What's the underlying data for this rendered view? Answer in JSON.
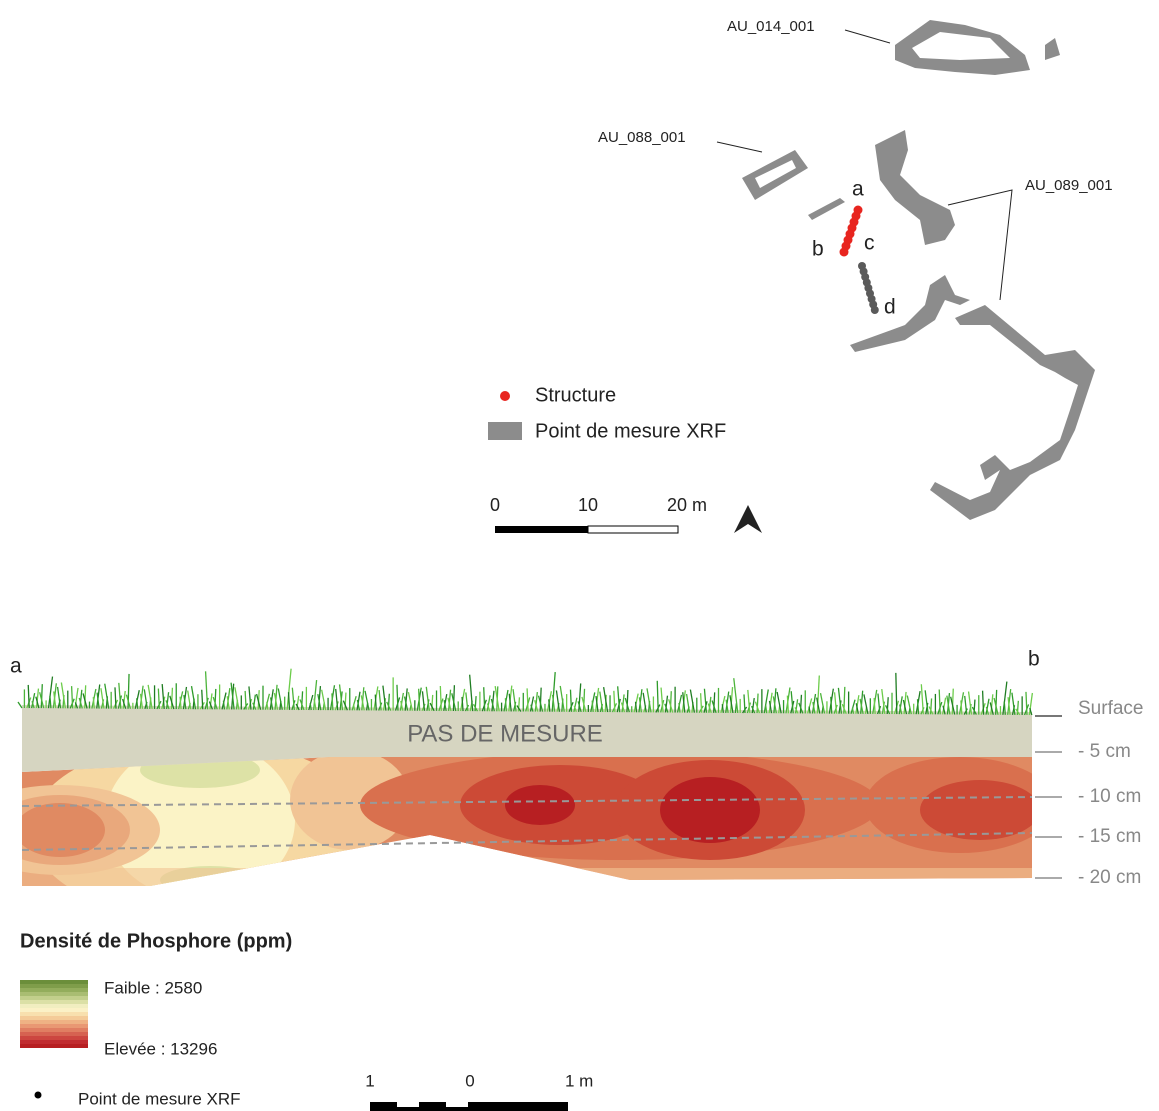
{
  "map": {
    "labels": [
      "AU_014_001",
      "AU_088_001",
      "AU_089_001"
    ],
    "points": [
      "a",
      "b",
      "c",
      "d"
    ],
    "legend": [
      "Structure",
      "Point de mesure XRF"
    ],
    "scale": [
      "0",
      "10",
      "20 m"
    ]
  },
  "section": {
    "ends": [
      "a",
      "b"
    ],
    "no_data": "PAS DE MESURE",
    "depths": [
      "Surface",
      "- 5 cm",
      "- 10 cm",
      "- 15 cm",
      "- 20 cm"
    ],
    "legend": {
      "title": "Densité de Phosphore (ppm)",
      "low": "Faible : 2580",
      "high": "Elevée : 13296",
      "point": "Point de mesure XRF"
    },
    "scale": [
      "1",
      "0",
      "1 m"
    ]
  }
}
